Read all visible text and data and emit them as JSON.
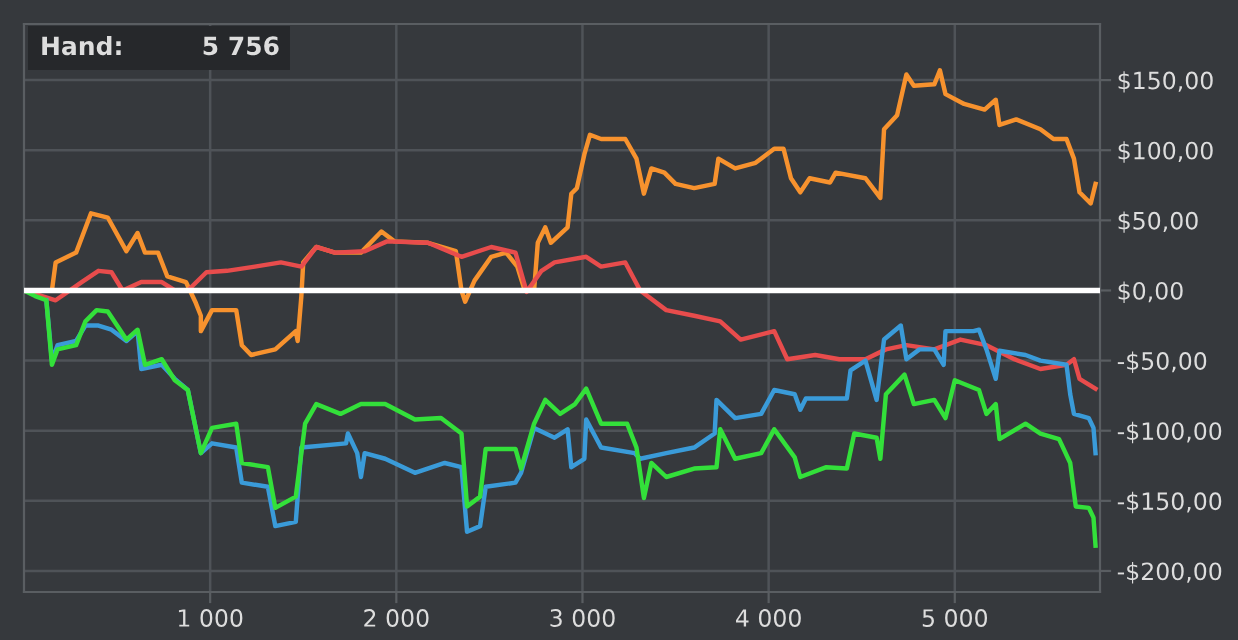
{
  "chart_data": {
    "type": "line",
    "annotations": [
      "Hand:",
      "5 756"
    ],
    "xlim": [
      0,
      5780
    ],
    "ylim": [
      -215,
      190
    ],
    "xticks": [
      {
        "value": 1000,
        "label": "1 000"
      },
      {
        "value": 2000,
        "label": "2 000"
      },
      {
        "value": 3000,
        "label": "3 000"
      },
      {
        "value": 4000,
        "label": "4 000"
      },
      {
        "value": 5000,
        "label": "5 000"
      }
    ],
    "yticks": [
      {
        "value": -200,
        "label": "-$200,00"
      },
      {
        "value": -150,
        "label": "-$150,00"
      },
      {
        "value": -100,
        "label": "-$100,00"
      },
      {
        "value": -50,
        "label": "-$50,00"
      },
      {
        "value": 0,
        "label": "$0,00"
      },
      {
        "value": 50,
        "label": "$50,00"
      },
      {
        "value": 100,
        "label": "$100,00"
      },
      {
        "value": 150,
        "label": "$150,00"
      }
    ],
    "grid": true,
    "marker": "none",
    "line_style": "solid",
    "ref_lines": [
      {
        "axis": "y",
        "value": 0,
        "label": null,
        "color": "#ffffff"
      }
    ],
    "series": [
      {
        "color": "#f7922e",
        "x": [
          0,
          150,
          170,
          280,
          360,
          450,
          550,
          610,
          650,
          720,
          770,
          870,
          920,
          950,
          950,
          1010,
          1140,
          1170,
          1220,
          1350,
          1460,
          1470,
          1490,
          1500,
          1570,
          1670,
          1810,
          1920,
          1990,
          2170,
          2320,
          2350,
          2370,
          2420,
          2510,
          2590,
          2650,
          2690,
          2740,
          2760,
          2800,
          2830,
          2920,
          2940,
          2970,
          3010,
          3040,
          3100,
          3230,
          3290,
          3330,
          3370,
          3440,
          3500,
          3600,
          3710,
          3730,
          3820,
          3930,
          4030,
          4080,
          4120,
          4170,
          4220,
          4330,
          4360,
          4520,
          4600,
          4620,
          4690,
          4740,
          4780,
          4890,
          4920,
          4950,
          5050,
          5160,
          5220,
          5240,
          5330,
          5460,
          5530,
          5600,
          5640,
          5670,
          5730,
          5756
        ],
        "values": [
          0,
          0,
          20,
          27,
          55,
          52,
          28,
          41,
          27,
          27,
          10,
          6,
          -8,
          -18,
          -29,
          -14,
          -14,
          -39,
          -46,
          -42,
          -29,
          -36,
          -4,
          20,
          31,
          27,
          27,
          42,
          35,
          34,
          28,
          0,
          -8,
          7,
          24,
          27,
          17,
          0,
          0,
          34,
          45,
          34,
          45,
          69,
          73,
          97,
          111,
          108,
          108,
          94,
          69,
          87,
          84,
          76,
          73,
          76,
          94,
          87,
          91,
          101,
          101,
          80,
          70,
          80,
          77,
          84,
          80,
          66,
          115,
          125,
          154,
          146,
          147,
          157,
          140,
          133,
          129,
          136,
          118,
          122,
          115,
          108,
          108,
          94,
          70,
          62,
          76
        ]
      },
      {
        "color": "#e84c4c",
        "x": [
          0,
          170,
          310,
          400,
          470,
          530,
          630,
          740,
          810,
          880,
          980,
          1090,
          1240,
          1380,
          1490,
          1570,
          1670,
          1830,
          1950,
          2170,
          2350,
          2510,
          2640,
          2700,
          2780,
          2850,
          3020,
          3100,
          3230,
          3310,
          3450,
          3600,
          3740,
          3850,
          4030,
          4100,
          4250,
          4380,
          4520,
          4630,
          4740,
          4890,
          5030,
          5170,
          5320,
          5460,
          5600,
          5640,
          5670,
          5756
        ],
        "values": [
          0,
          -7,
          6,
          14,
          13,
          0,
          6,
          6,
          0,
          0,
          13,
          14,
          17,
          20,
          17,
          31,
          27,
          28,
          35,
          34,
          24,
          31,
          27,
          -1,
          14,
          20,
          24,
          17,
          20,
          0,
          -14,
          -18,
          -22,
          -35,
          -29,
          -49,
          -46,
          -49,
          -49,
          -42,
          -39,
          -42,
          -35,
          -39,
          -49,
          -56,
          -53,
          -49,
          -63,
          -70
        ]
      },
      {
        "color": "#3a9bd9",
        "x": [
          120,
          150,
          180,
          280,
          330,
          400,
          470,
          550,
          610,
          630,
          740,
          810,
          880,
          950,
          1010,
          1140,
          1170,
          1310,
          1350,
          1460,
          1490,
          1730,
          1740,
          1790,
          1810,
          1830,
          1940,
          2100,
          2260,
          2350,
          2380,
          2450,
          2480,
          2640,
          2670,
          2740,
          2850,
          2920,
          2940,
          3010,
          3020,
          3100,
          3280,
          3310,
          3450,
          3600,
          3710,
          3720,
          3820,
          3960,
          4030,
          4140,
          4170,
          4200,
          4420,
          4440,
          4520,
          4580,
          4620,
          4710,
          4740,
          4810,
          4890,
          4940,
          4950,
          5100,
          5130,
          5170,
          5220,
          5240,
          5380,
          5460,
          5600,
          5620,
          5640,
          5720,
          5745,
          5756
        ],
        "values": [
          -7,
          -50,
          -39,
          -36,
          -25,
          -25,
          -28,
          -36,
          -29,
          -56,
          -53,
          -63,
          -71,
          -116,
          -109,
          -112,
          -137,
          -140,
          -168,
          -165,
          -112,
          -109,
          -102,
          -116,
          -133,
          -116,
          -120,
          -130,
          -123,
          -126,
          -172,
          -168,
          -140,
          -137,
          -130,
          -98,
          -105,
          -99,
          -126,
          -120,
          -92,
          -112,
          -116,
          -120,
          -116,
          -112,
          -102,
          -78,
          -91,
          -88,
          -71,
          -74,
          -85,
          -77,
          -77,
          -57,
          -50,
          -78,
          -35,
          -25,
          -49,
          -42,
          -42,
          -53,
          -29,
          -29,
          -28,
          -42,
          -63,
          -43,
          -46,
          -50,
          -53,
          -74,
          -88,
          -91,
          -98,
          -116
        ]
      },
      {
        "color": "#33e03a",
        "x": [
          0,
          60,
          120,
          150,
          180,
          280,
          330,
          390,
          450,
          550,
          610,
          650,
          740,
          810,
          880,
          950,
          1010,
          1140,
          1170,
          1310,
          1350,
          1460,
          1510,
          1570,
          1700,
          1810,
          1940,
          2100,
          2240,
          2350,
          2380,
          2450,
          2480,
          2640,
          2670,
          2740,
          2800,
          2880,
          2960,
          3020,
          3100,
          3240,
          3290,
          3330,
          3370,
          3450,
          3600,
          3720,
          3740,
          3820,
          3960,
          4030,
          4140,
          4170,
          4310,
          4420,
          4460,
          4580,
          4600,
          4630,
          4730,
          4780,
          4890,
          4950,
          5000,
          5130,
          5170,
          5220,
          5240,
          5380,
          5460,
          5560,
          5620,
          5650,
          5720,
          5745,
          5756
        ],
        "values": [
          0,
          -4,
          -7,
          -53,
          -42,
          -39,
          -22,
          -14,
          -15,
          -35,
          -28,
          -53,
          -49,
          -64,
          -71,
          -116,
          -98,
          -95,
          -123,
          -126,
          -155,
          -147,
          -95,
          -81,
          -88,
          -81,
          -81,
          -92,
          -91,
          -102,
          -154,
          -147,
          -113,
          -113,
          -127,
          -95,
          -78,
          -88,
          -81,
          -70,
          -95,
          -95,
          -112,
          -148,
          -123,
          -133,
          -127,
          -126,
          -99,
          -120,
          -116,
          -99,
          -119,
          -133,
          -126,
          -127,
          -102,
          -105,
          -120,
          -74,
          -60,
          -81,
          -78,
          -91,
          -64,
          -71,
          -88,
          -81,
          -106,
          -95,
          -102,
          -106,
          -123,
          -154,
          -155,
          -162,
          -182
        ]
      }
    ]
  }
}
